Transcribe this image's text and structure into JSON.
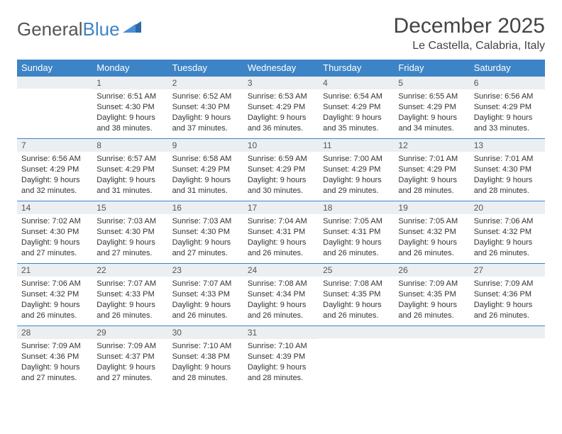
{
  "brand": {
    "part1": "General",
    "part2": "Blue"
  },
  "title": "December 2025",
  "location": "Le Castella, Calabria, Italy",
  "colors": {
    "header_bg": "#3d84c6",
    "header_text": "#ffffff",
    "daynum_bg": "#eceff1",
    "row_border": "#3d84c6",
    "text": "#333333",
    "logo_gray": "#555555",
    "logo_blue": "#3d84c6"
  },
  "weekday_labels": [
    "Sunday",
    "Monday",
    "Tuesday",
    "Wednesday",
    "Thursday",
    "Friday",
    "Saturday"
  ],
  "start_offset": 1,
  "days": [
    {
      "n": "1",
      "sr": "6:51 AM",
      "ss": "4:30 PM",
      "dl": "9 hours and 38 minutes."
    },
    {
      "n": "2",
      "sr": "6:52 AM",
      "ss": "4:30 PM",
      "dl": "9 hours and 37 minutes."
    },
    {
      "n": "3",
      "sr": "6:53 AM",
      "ss": "4:29 PM",
      "dl": "9 hours and 36 minutes."
    },
    {
      "n": "4",
      "sr": "6:54 AM",
      "ss": "4:29 PM",
      "dl": "9 hours and 35 minutes."
    },
    {
      "n": "5",
      "sr": "6:55 AM",
      "ss": "4:29 PM",
      "dl": "9 hours and 34 minutes."
    },
    {
      "n": "6",
      "sr": "6:56 AM",
      "ss": "4:29 PM",
      "dl": "9 hours and 33 minutes."
    },
    {
      "n": "7",
      "sr": "6:56 AM",
      "ss": "4:29 PM",
      "dl": "9 hours and 32 minutes."
    },
    {
      "n": "8",
      "sr": "6:57 AM",
      "ss": "4:29 PM",
      "dl": "9 hours and 31 minutes."
    },
    {
      "n": "9",
      "sr": "6:58 AM",
      "ss": "4:29 PM",
      "dl": "9 hours and 31 minutes."
    },
    {
      "n": "10",
      "sr": "6:59 AM",
      "ss": "4:29 PM",
      "dl": "9 hours and 30 minutes."
    },
    {
      "n": "11",
      "sr": "7:00 AM",
      "ss": "4:29 PM",
      "dl": "9 hours and 29 minutes."
    },
    {
      "n": "12",
      "sr": "7:01 AM",
      "ss": "4:29 PM",
      "dl": "9 hours and 28 minutes."
    },
    {
      "n": "13",
      "sr": "7:01 AM",
      "ss": "4:30 PM",
      "dl": "9 hours and 28 minutes."
    },
    {
      "n": "14",
      "sr": "7:02 AM",
      "ss": "4:30 PM",
      "dl": "9 hours and 27 minutes."
    },
    {
      "n": "15",
      "sr": "7:03 AM",
      "ss": "4:30 PM",
      "dl": "9 hours and 27 minutes."
    },
    {
      "n": "16",
      "sr": "7:03 AM",
      "ss": "4:30 PM",
      "dl": "9 hours and 27 minutes."
    },
    {
      "n": "17",
      "sr": "7:04 AM",
      "ss": "4:31 PM",
      "dl": "9 hours and 26 minutes."
    },
    {
      "n": "18",
      "sr": "7:05 AM",
      "ss": "4:31 PM",
      "dl": "9 hours and 26 minutes."
    },
    {
      "n": "19",
      "sr": "7:05 AM",
      "ss": "4:32 PM",
      "dl": "9 hours and 26 minutes."
    },
    {
      "n": "20",
      "sr": "7:06 AM",
      "ss": "4:32 PM",
      "dl": "9 hours and 26 minutes."
    },
    {
      "n": "21",
      "sr": "7:06 AM",
      "ss": "4:32 PM",
      "dl": "9 hours and 26 minutes."
    },
    {
      "n": "22",
      "sr": "7:07 AM",
      "ss": "4:33 PM",
      "dl": "9 hours and 26 minutes."
    },
    {
      "n": "23",
      "sr": "7:07 AM",
      "ss": "4:33 PM",
      "dl": "9 hours and 26 minutes."
    },
    {
      "n": "24",
      "sr": "7:08 AM",
      "ss": "4:34 PM",
      "dl": "9 hours and 26 minutes."
    },
    {
      "n": "25",
      "sr": "7:08 AM",
      "ss": "4:35 PM",
      "dl": "9 hours and 26 minutes."
    },
    {
      "n": "26",
      "sr": "7:09 AM",
      "ss": "4:35 PM",
      "dl": "9 hours and 26 minutes."
    },
    {
      "n": "27",
      "sr": "7:09 AM",
      "ss": "4:36 PM",
      "dl": "9 hours and 26 minutes."
    },
    {
      "n": "28",
      "sr": "7:09 AM",
      "ss": "4:36 PM",
      "dl": "9 hours and 27 minutes."
    },
    {
      "n": "29",
      "sr": "7:09 AM",
      "ss": "4:37 PM",
      "dl": "9 hours and 27 minutes."
    },
    {
      "n": "30",
      "sr": "7:10 AM",
      "ss": "4:38 PM",
      "dl": "9 hours and 28 minutes."
    },
    {
      "n": "31",
      "sr": "7:10 AM",
      "ss": "4:39 PM",
      "dl": "9 hours and 28 minutes."
    }
  ],
  "labels": {
    "sunrise": "Sunrise:",
    "sunset": "Sunset:",
    "daylight": "Daylight:"
  }
}
